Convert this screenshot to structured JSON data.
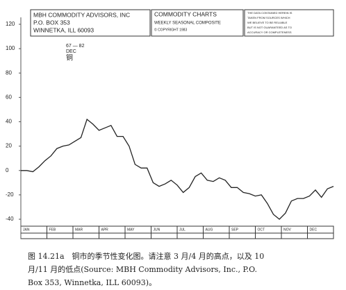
{
  "header": {
    "advisor": [
      "MBH COMMODITY ADVISORS, INC",
      "P.O. BOX 353",
      "WINNETKA, ILL 60093"
    ],
    "product": [
      "COMMODITY CHARTS",
      "WEEKLY SEASONAL COMPOSITE",
      "© COPYRIGHT 1983"
    ],
    "disclaimer": [
      "THE DATA CONTAINED HEREIN IS",
      "TAKEN FROM SOURCES WHICH",
      "WE BELIEVE TO BE RELIABLE",
      "BUT IS NOT GUARANTEED AS TO",
      "ACCURACY OR COMPLETENESS"
    ]
  },
  "chart_data": {
    "type": "line",
    "annotation": [
      "67 — 82",
      "DEC",
      "铜"
    ],
    "months": [
      "JAN",
      "FEB",
      "MAR",
      "APR",
      "MAY",
      "JUN",
      "JUL",
      "AUG",
      "SEP",
      "OCT",
      "NOV",
      "DEC"
    ],
    "values": [
      0,
      0,
      -1,
      3,
      8,
      12,
      18,
      20,
      21,
      24,
      27,
      42,
      38,
      33,
      35,
      37,
      28,
      28,
      20,
      5,
      2,
      2,
      -10,
      -13,
      -11,
      -8,
      -12,
      -18,
      -14,
      -5,
      -2,
      -8,
      -9,
      -6,
      -8,
      -14,
      -14,
      -18,
      -19,
      -21,
      -20,
      -27,
      -36,
      -40,
      -35,
      -25,
      -23,
      -23,
      -21,
      -16,
      -22,
      -15,
      -13
    ],
    "color": "#222222",
    "ylim": [
      -40,
      120
    ],
    "yticks": [
      120,
      100,
      80,
      60,
      40,
      20,
      0,
      -20,
      -40
    ]
  },
  "caption": [
    "图 14.21a　铜市的季节性变化图。请注意 3 月/4 月的高点，以及 10",
    "月/11 月的低点(Source: MBH Commodity Advisors, Inc., P.O.",
    "Box 353, Winnetka, ILL 60093)。"
  ]
}
